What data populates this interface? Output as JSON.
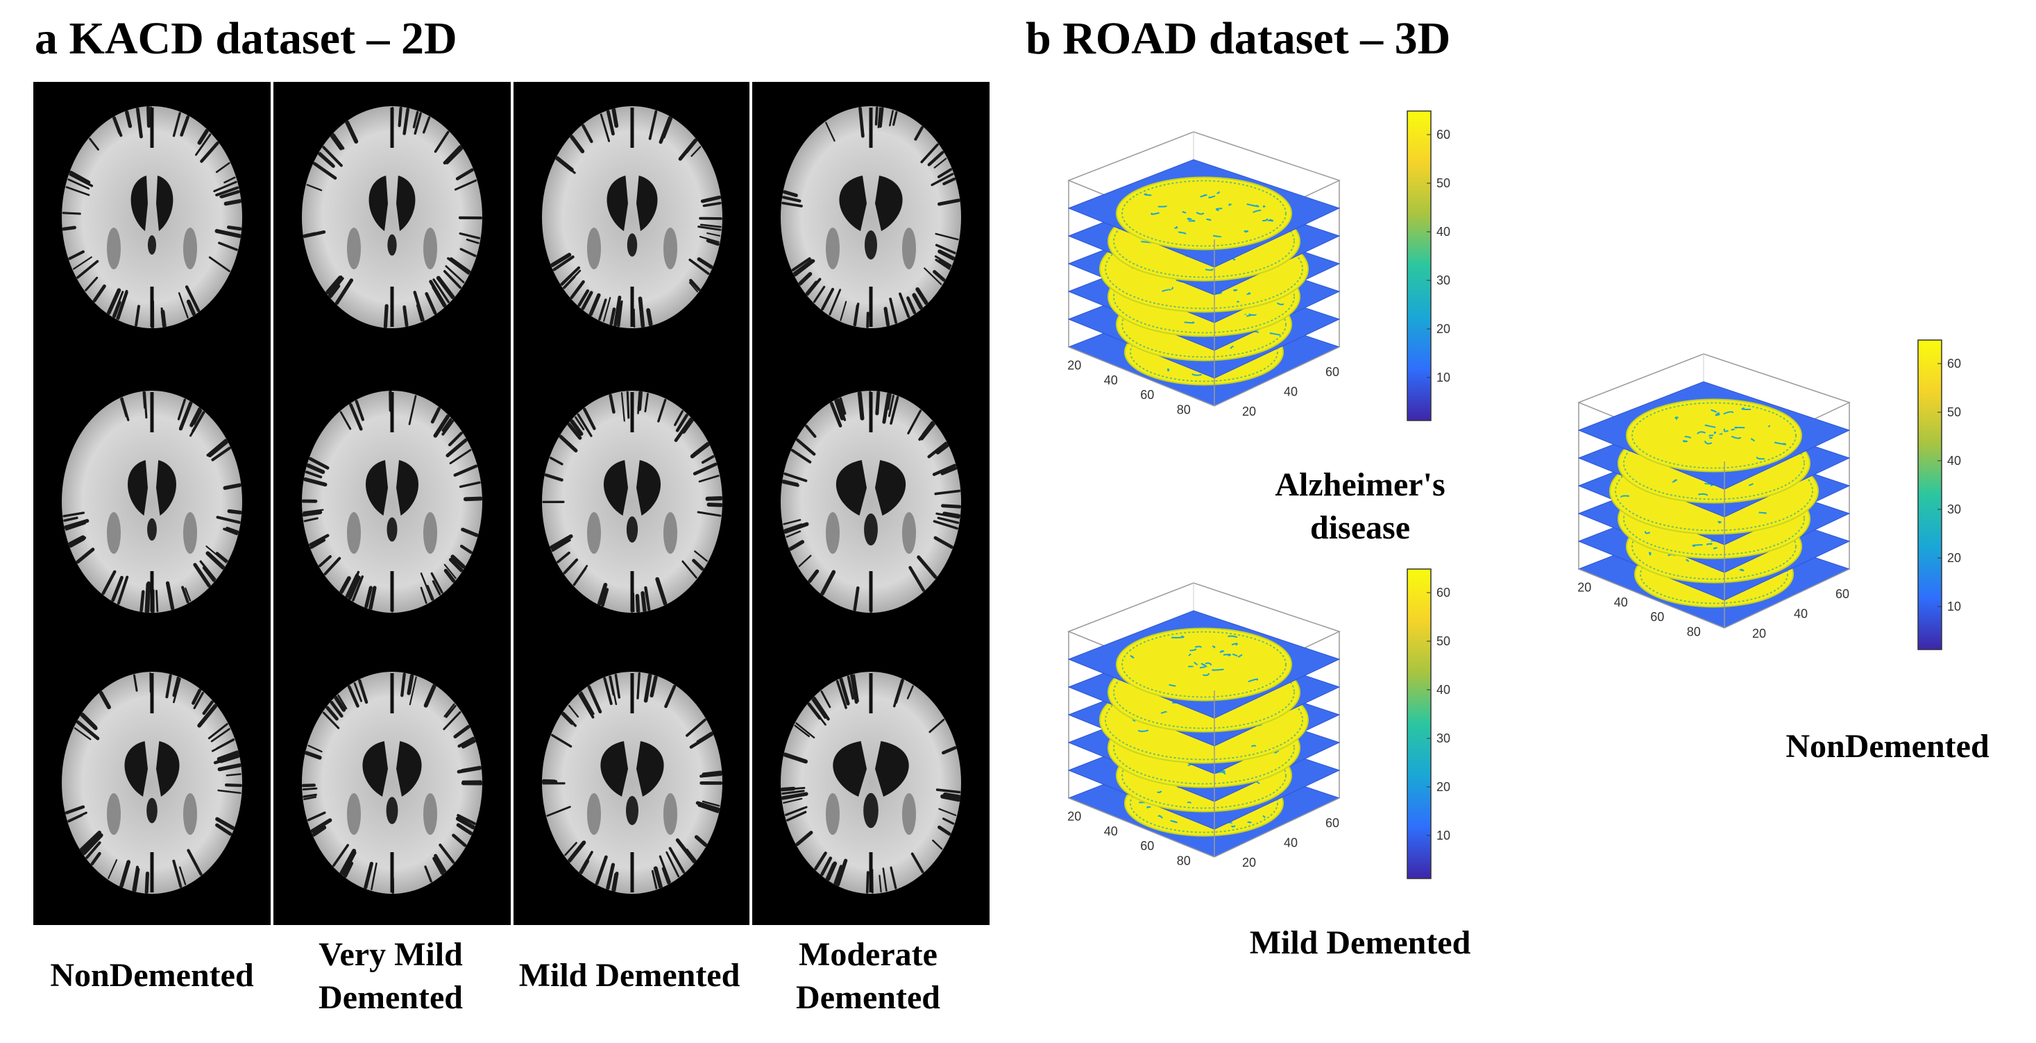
{
  "panel_a": {
    "title": "a KACD dataset – 2D",
    "columns": [
      {
        "label_line1": "NonDemented",
        "label_line2": ""
      },
      {
        "label_line1": "Very Mild",
        "label_line2": "Demented"
      },
      {
        "label_line1": "Mild Demented",
        "label_line2": ""
      },
      {
        "label_line1": "Moderate",
        "label_line2": "Demented"
      }
    ]
  },
  "panel_b": {
    "title": "b ROAD dataset – 3D",
    "plots": [
      {
        "label_line1": "Alzheimer's",
        "label_line2": "disease"
      },
      {
        "label_line1": "Mild Demented",
        "label_line2": ""
      },
      {
        "label_line1": "NonDemented",
        "label_line2": ""
      }
    ],
    "axis_ticks_x": [
      "20",
      "40",
      "60",
      "80"
    ],
    "axis_ticks_y": [
      "20",
      "40",
      "60"
    ],
    "colorbar_ticks": [
      "60",
      "50",
      "40",
      "30",
      "20",
      "10"
    ],
    "colormap": [
      "#3e26a8",
      "#2f6ffc",
      "#1aa7d6",
      "#2bc6a0",
      "#a9c440",
      "#f5d32a",
      "#f9fb0e"
    ]
  }
}
